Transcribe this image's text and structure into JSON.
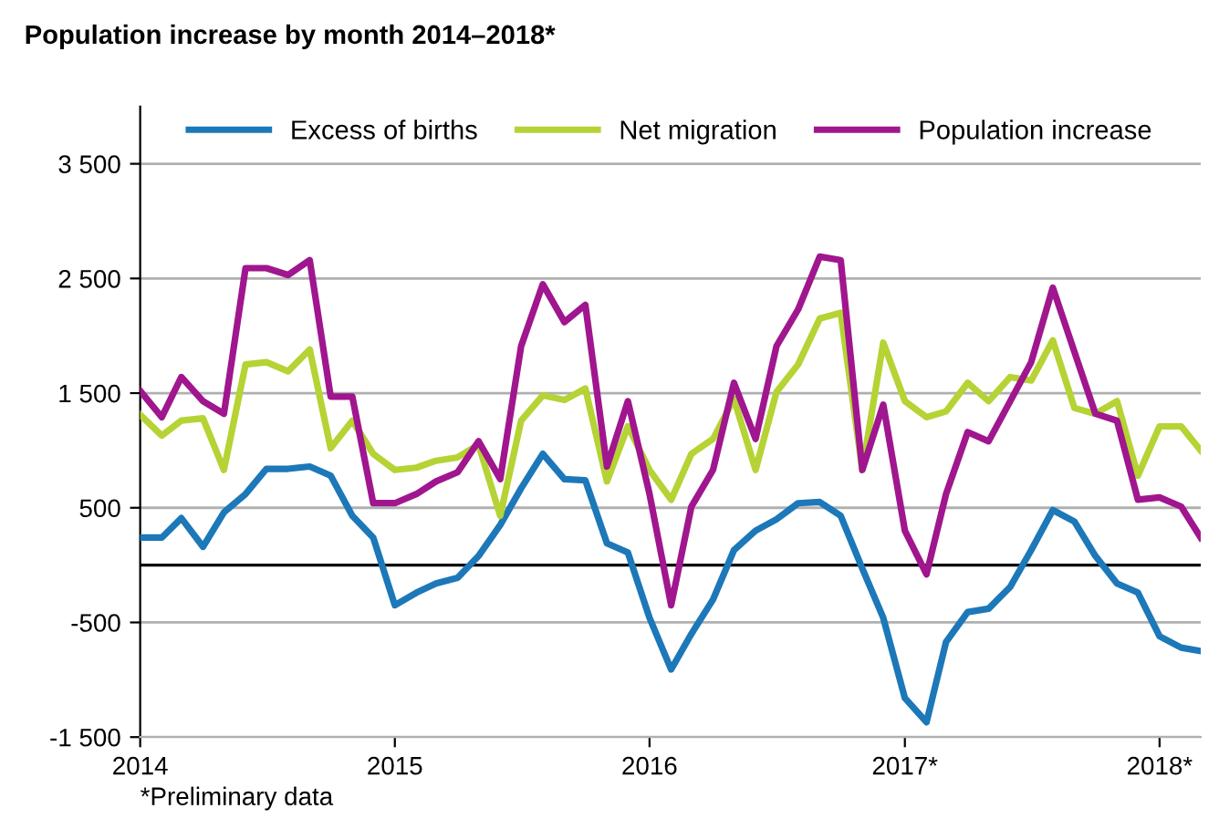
{
  "chart_data": {
    "type": "line",
    "title": "Population increase by month 2014–2018*",
    "x": [
      "2014-01",
      "2014-02",
      "2014-03",
      "2014-04",
      "2014-05",
      "2014-06",
      "2014-07",
      "2014-08",
      "2014-09",
      "2014-10",
      "2014-11",
      "2014-12",
      "2015-01",
      "2015-02",
      "2015-03",
      "2015-04",
      "2015-05",
      "2015-06",
      "2015-07",
      "2015-08",
      "2015-09",
      "2015-10",
      "2015-11",
      "2015-12",
      "2016-01",
      "2016-02",
      "2016-03",
      "2016-04",
      "2016-05",
      "2016-06",
      "2016-07",
      "2016-08",
      "2016-09",
      "2016-10",
      "2016-11",
      "2016-12",
      "2017-01",
      "2017-02",
      "2017-03",
      "2017-04",
      "2017-05",
      "2017-06",
      "2017-07",
      "2017-08",
      "2017-09",
      "2017-10",
      "2017-11",
      "2017-12",
      "2018-01",
      "2018-02",
      "2018-03"
    ],
    "series": [
      {
        "name": "Excess of births",
        "color": "#1c78b8",
        "values": [
          240,
          240,
          410,
          160,
          460,
          620,
          840,
          840,
          860,
          780,
          430,
          240,
          -350,
          -240,
          -160,
          -110,
          80,
          350,
          670,
          970,
          750,
          740,
          190,
          110,
          -460,
          -910,
          -600,
          -300,
          130,
          300,
          400,
          540,
          550,
          430,
          -30,
          -460,
          -1160,
          -1370,
          -670,
          -410,
          -380,
          -190,
          130,
          480,
          380,
          80,
          -160,
          -240,
          -620,
          -720,
          -750
        ]
      },
      {
        "name": "Net migration",
        "color": "#b5d334",
        "values": [
          1310,
          1130,
          1260,
          1280,
          830,
          1750,
          1770,
          1690,
          1880,
          1020,
          1260,
          970,
          830,
          850,
          910,
          940,
          1050,
          430,
          1260,
          1480,
          1440,
          1540,
          730,
          1210,
          830,
          570,
          970,
          1100,
          1450,
          830,
          1510,
          1750,
          2150,
          2200,
          830,
          1940,
          1430,
          1290,
          1340,
          1590,
          1430,
          1640,
          1610,
          1960,
          1370,
          1320,
          1430,
          780,
          1210,
          1210,
          1000
        ]
      },
      {
        "name": "Population increase",
        "color": "#a0168e",
        "values": [
          1520,
          1290,
          1640,
          1430,
          1320,
          2590,
          2590,
          2530,
          2660,
          1470,
          1470,
          540,
          540,
          620,
          730,
          810,
          1080,
          750,
          1910,
          2450,
          2120,
          2270,
          860,
          1430,
          620,
          -350,
          510,
          830,
          1590,
          1100,
          1910,
          2230,
          2690,
          2660,
          830,
          1400,
          300,
          -80,
          620,
          1160,
          1080,
          1430,
          1770,
          2420,
          1860,
          1320,
          1260,
          570,
          590,
          510,
          240
        ]
      }
    ],
    "xlim": [
      "2014-01",
      "2018-03"
    ],
    "xticks": [
      {
        "value": "2014-01",
        "label": "2014"
      },
      {
        "value": "2015-01",
        "label": "2015"
      },
      {
        "value": "2016-01",
        "label": "2016"
      },
      {
        "value": "2017-01",
        "label": "2017*"
      },
      {
        "value": "2018-01",
        "label": "2018*"
      }
    ],
    "ylim": [
      -1500,
      4000
    ],
    "yticks": [
      {
        "value": -1500,
        "label": "-1 500"
      },
      {
        "value": -500,
        "label": "-500"
      },
      {
        "value": 500,
        "label": "500"
      },
      {
        "value": 1500,
        "label": "1 500"
      },
      {
        "value": 2500,
        "label": "2 500"
      },
      {
        "value": 3500,
        "label": "3 500"
      }
    ],
    "ref_lines": [
      {
        "axis": "y",
        "value": 0,
        "color": "#000000"
      }
    ],
    "grid": "y",
    "legend": "top",
    "marker": "none",
    "line_style": "solid",
    "annotations": [
      "*Preliminary data"
    ]
  }
}
